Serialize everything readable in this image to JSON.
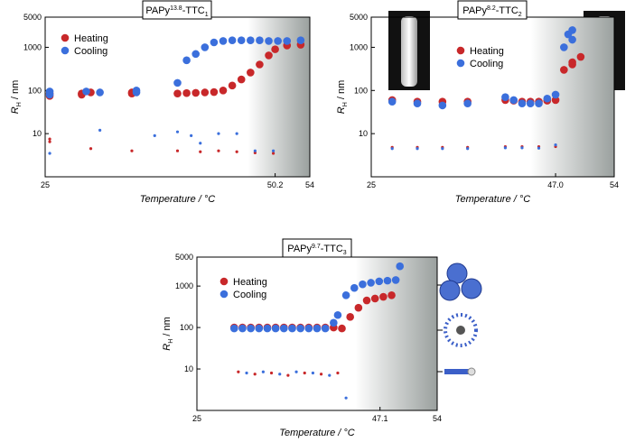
{
  "chart_data": [
    {
      "type": "scatter",
      "title": {
        "base": "PAPy",
        "sup": "13.8",
        "mid": "-TTC",
        "sub": "1"
      },
      "ylabel": {
        "base": "R",
        "sub": "H",
        "rest": " / nm"
      },
      "xlabel": "Temperature / °C",
      "log_y": true,
      "xlim": [
        25,
        54
      ],
      "ylim": [
        1,
        5000
      ],
      "xticks": [
        25,
        50.2,
        54
      ],
      "yticks": [
        10,
        100,
        1000,
        5000
      ],
      "series": [
        {
          "name": "Heating",
          "color": "#c8282a",
          "x": [
            25.5,
            25.5,
            25.5,
            25.5,
            29,
            29,
            30,
            30,
            34.5,
            34.5,
            34.5,
            39.5,
            40.5,
            41.5,
            42.5,
            43.5,
            44.5,
            45.5,
            46.5,
            47.5,
            48.5,
            49.5,
            50.2,
            51.5,
            53,
            39.5,
            42,
            44,
            46,
            48,
            50
          ],
          "values": [
            85,
            75,
            7.5,
            6.5,
            85,
            80,
            90,
            4.5,
            90,
            85,
            4,
            85,
            87,
            88,
            90,
            92,
            100,
            130,
            180,
            260,
            400,
            650,
            900,
            1100,
            1150,
            4,
            3.8,
            4,
            3.8,
            3.6,
            3.5
          ]
        },
        {
          "name": "Cooling",
          "color": "#3b6fdc",
          "x": [
            25.5,
            25.5,
            25.5,
            29.5,
            31,
            31,
            35,
            35,
            37,
            39.5,
            40.5,
            41.5,
            42.5,
            43.5,
            44.5,
            45.5,
            46.5,
            47.5,
            48.5,
            49.5,
            50.5,
            51.5,
            53,
            39.5,
            41,
            42,
            44,
            46,
            48,
            50
          ],
          "values": [
            95,
            80,
            3.5,
            95,
            90,
            12,
            100,
            90,
            9,
            150,
            500,
            700,
            1000,
            1300,
            1400,
            1450,
            1450,
            1450,
            1450,
            1400,
            1400,
            1400,
            1450,
            11,
            9,
            6,
            10,
            10,
            4,
            4
          ]
        }
      ]
    },
    {
      "type": "scatter",
      "title": {
        "base": "PAPy",
        "sup": "8.2",
        "mid": "-TTC",
        "sub": "2"
      },
      "ylabel": {
        "base": "R",
        "sub": "H",
        "rest": " / nm"
      },
      "xlabel": "Temperature / °C",
      "log_y": true,
      "xlim": [
        25,
        54
      ],
      "ylim": [
        1,
        5000
      ],
      "xticks": [
        25,
        {
          "value": 47,
          "label": "47.0"
        },
        54
      ],
      "yticks": [
        10,
        100,
        1000,
        5000
      ],
      "series": [
        {
          "name": "Heating",
          "color": "#c8282a",
          "x": [
            27.5,
            30.5,
            33.5,
            36.5,
            41,
            42,
            43,
            44,
            45,
            46,
            47,
            48,
            49,
            50,
            49,
            27.5,
            30.5,
            33.5,
            36.5,
            41,
            43,
            45,
            47
          ],
          "values": [
            60,
            55,
            55,
            55,
            60,
            58,
            55,
            55,
            55,
            58,
            60,
            300,
            450,
            600,
            400,
            4.8,
            4.8,
            4.8,
            4.8,
            5,
            5,
            5,
            5
          ]
        },
        {
          "name": "Cooling",
          "color": "#3b6fdc",
          "x": [
            27.5,
            30.5,
            33.5,
            36.5,
            41,
            42,
            43,
            44,
            45,
            46,
            47,
            48,
            48.5,
            49,
            49,
            27.5,
            30.5,
            33.5,
            36.5,
            41,
            43,
            45,
            47
          ],
          "values": [
            55,
            50,
            45,
            50,
            70,
            60,
            50,
            50,
            50,
            65,
            80,
            1000,
            2000,
            2500,
            1500,
            4.5,
            4.5,
            4.5,
            4.5,
            4.7,
            4.7,
            4.6,
            5.5
          ]
        }
      ]
    },
    {
      "type": "scatter",
      "title": {
        "base": "PAPy",
        "sup": "9.7",
        "mid": "-TTC",
        "sub": "3"
      },
      "ylabel": {
        "base": "R",
        "sub": "H",
        "rest": " / nm"
      },
      "xlabel": "Temperature / °C",
      "log_y": true,
      "xlim": [
        25,
        54
      ],
      "ylim": [
        1,
        5000
      ],
      "xticks": [
        25,
        47.1,
        54
      ],
      "yticks": [
        10,
        100,
        1000,
        5000
      ],
      "series": [
        {
          "name": "Heating",
          "color": "#c8282a",
          "x": [
            29.5,
            30.5,
            31.5,
            32.5,
            33.5,
            34.5,
            35.5,
            36.5,
            37.5,
            38.5,
            39.5,
            40.5,
            41.5,
            42.5,
            43.5,
            44.5,
            45.5,
            46.5,
            47.5,
            48.5,
            30,
            32,
            34,
            36,
            38,
            40,
            42
          ],
          "values": [
            100,
            100,
            100,
            100,
            100,
            100,
            100,
            100,
            100,
            100,
            100,
            100,
            100,
            95,
            180,
            300,
            450,
            500,
            550,
            600,
            8.5,
            7.5,
            8,
            7,
            8,
            7.5,
            8
          ]
        },
        {
          "name": "Cooling",
          "color": "#3b6fdc",
          "x": [
            29.5,
            30.5,
            31.5,
            32.5,
            33.5,
            34.5,
            35.5,
            36.5,
            37.5,
            38.5,
            39.5,
            40.5,
            41.5,
            42,
            43,
            44,
            45,
            46,
            47,
            48,
            49,
            49.5,
            31,
            33,
            35,
            37,
            39,
            41,
            43
          ],
          "values": [
            95,
            95,
            95,
            95,
            95,
            95,
            95,
            95,
            95,
            95,
            95,
            95,
            130,
            200,
            600,
            900,
            1100,
            1200,
            1300,
            1350,
            1400,
            3000,
            8,
            8.5,
            7.5,
            8.5,
            8,
            7,
            2
          ]
        }
      ]
    }
  ]
}
